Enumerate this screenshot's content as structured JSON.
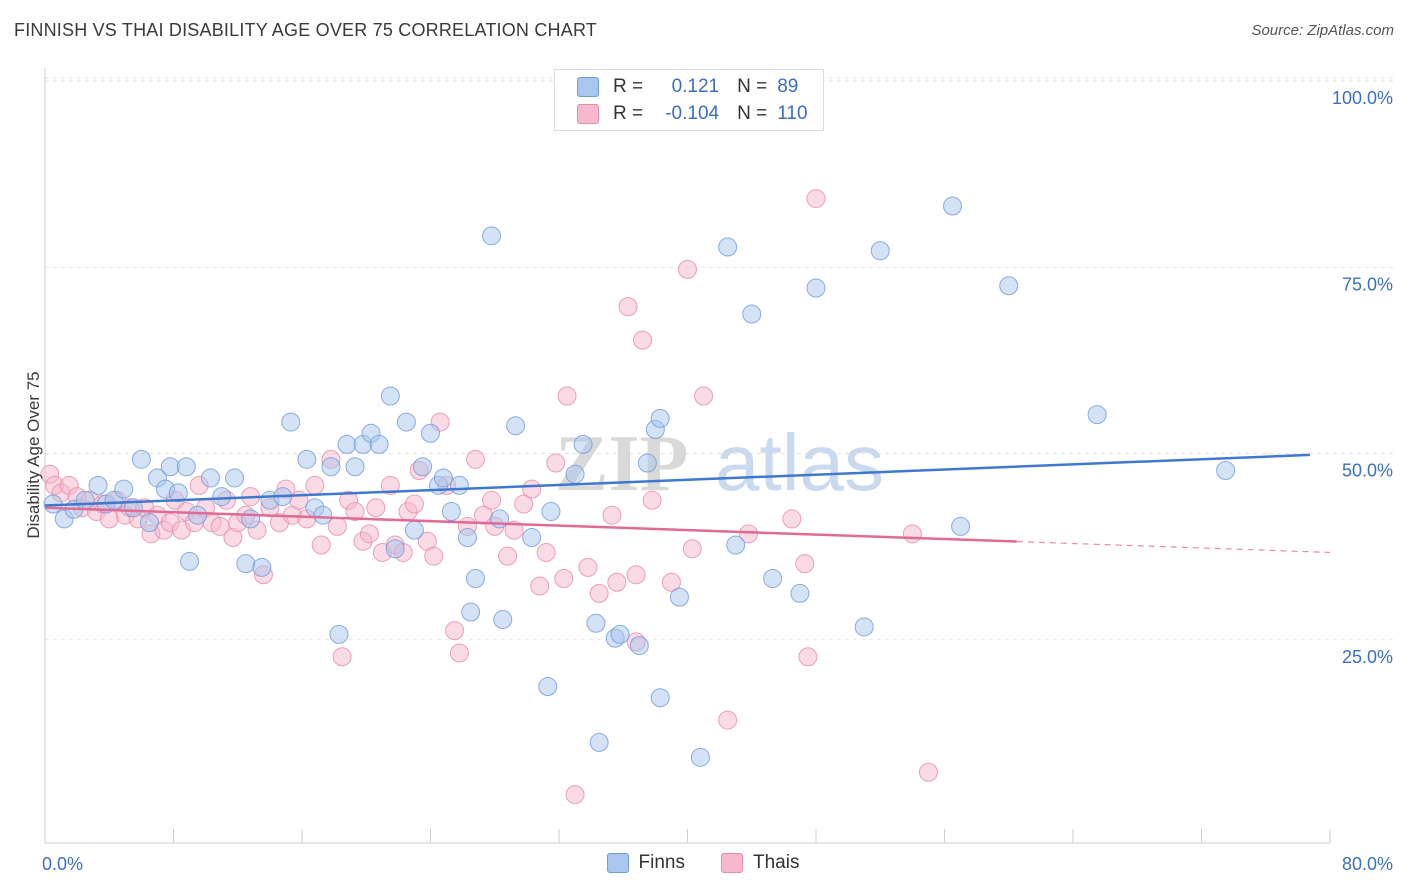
{
  "header": {
    "title": "FINNISH VS THAI DISABILITY AGE OVER 75 CORRELATION CHART",
    "source": "Source: ZipAtlas.com"
  },
  "legend": {
    "rows": [
      {
        "r_label": "R =",
        "r_value": "0.121",
        "n_label": "N =",
        "n_value": "89",
        "color": "#a9c6ee",
        "border": "#6f9bd8"
      },
      {
        "r_label": "R =",
        "r_value": "-0.104",
        "n_label": "N =",
        "n_value": "110",
        "color": "#f6b8cc",
        "border": "#e88aa9"
      }
    ]
  },
  "bottom_legend": [
    {
      "label": "Finns",
      "color": "#a9c6ee",
      "border": "#6f9bd8"
    },
    {
      "label": "Thais",
      "color": "#f6b8cc",
      "border": "#e88aa9"
    }
  ],
  "watermark": {
    "zip": "ZIP",
    "atlas": "atlas"
  },
  "chart_data": {
    "type": "scatter",
    "title": "FINNISH VS THAI DISABILITY AGE OVER 75 CORRELATION CHART",
    "xlabel": "",
    "ylabel": "Disability Age Over 75",
    "xlim": [
      0,
      80
    ],
    "ylim": [
      0,
      105
    ],
    "x_tick_labels": [
      "0.0%",
      "80.0%"
    ],
    "y_tick_labels": [
      "25.0%",
      "50.0%",
      "75.0%",
      "100.0%"
    ],
    "y_ticks": [
      25,
      50,
      75,
      100
    ],
    "grid": true,
    "legend_placement": "top-center",
    "series": [
      {
        "name": "Finns",
        "color": "#6f9bd8",
        "fill": "#a9c6ee",
        "trend": {
          "x0": 0,
          "y0": 45.3,
          "x1": 80,
          "y1": 52.2,
          "dash_from": 80
        },
        "points": [
          [
            0.5,
            45.5
          ],
          [
            1.2,
            43.5
          ],
          [
            1.8,
            44.8
          ],
          [
            2.5,
            46
          ],
          [
            3.3,
            48
          ],
          [
            3.8,
            45.5
          ],
          [
            4.3,
            46
          ],
          [
            4.9,
            47.5
          ],
          [
            5.5,
            45
          ],
          [
            6,
            51.5
          ],
          [
            6.5,
            43
          ],
          [
            7,
            49
          ],
          [
            7.5,
            47.5
          ],
          [
            7.8,
            50.5
          ],
          [
            8.3,
            47
          ],
          [
            8.8,
            50.5
          ],
          [
            9,
            37.8
          ],
          [
            9.5,
            44
          ],
          [
            10.3,
            49
          ],
          [
            11,
            46.5
          ],
          [
            11.8,
            49
          ],
          [
            12.5,
            37.5
          ],
          [
            12.8,
            43.5
          ],
          [
            13.5,
            37
          ],
          [
            14,
            46
          ],
          [
            14.8,
            46.5
          ],
          [
            15.3,
            56.5
          ],
          [
            16.3,
            51.5
          ],
          [
            16.8,
            45
          ],
          [
            17.3,
            44
          ],
          [
            17.8,
            50.5
          ],
          [
            18.3,
            28
          ],
          [
            18.8,
            53.5
          ],
          [
            19.3,
            50.5
          ],
          [
            19.8,
            53.5
          ],
          [
            20.3,
            55
          ],
          [
            20.8,
            53.5
          ],
          [
            21.5,
            60
          ],
          [
            21.8,
            39.5
          ],
          [
            22.5,
            56.5
          ],
          [
            23,
            42
          ],
          [
            23.5,
            50.5
          ],
          [
            24,
            55
          ],
          [
            24.5,
            48
          ],
          [
            24.8,
            49
          ],
          [
            25.3,
            44.5
          ],
          [
            25.8,
            48
          ],
          [
            26.3,
            41
          ],
          [
            26.8,
            35.5
          ],
          [
            26.5,
            31
          ],
          [
            27.8,
            81.5
          ],
          [
            28.3,
            43.5
          ],
          [
            28.5,
            30
          ],
          [
            29.3,
            56
          ],
          [
            30.3,
            41
          ],
          [
            31.3,
            21
          ],
          [
            31.5,
            44.5
          ],
          [
            33,
            49.5
          ],
          [
            33.5,
            53.5
          ],
          [
            34.5,
            13.5
          ],
          [
            34.3,
            29.5
          ],
          [
            35.5,
            27.5
          ],
          [
            35.8,
            28
          ],
          [
            37,
            26.5
          ],
          [
            37.5,
            51
          ],
          [
            38,
            55.5
          ],
          [
            38.3,
            57
          ],
          [
            38.3,
            19.5
          ],
          [
            39.5,
            33
          ],
          [
            40.8,
            11.5
          ],
          [
            42.5,
            80
          ],
          [
            43,
            40
          ],
          [
            44,
            71
          ],
          [
            45.3,
            35.5
          ],
          [
            47,
            33.5
          ],
          [
            48,
            74.5
          ],
          [
            51,
            29
          ],
          [
            52,
            79.5
          ],
          [
            56.5,
            85.5
          ],
          [
            57,
            42.5
          ],
          [
            60,
            74.8
          ],
          [
            65.5,
            57.5
          ],
          [
            73.5,
            50
          ]
        ]
      },
      {
        "name": "Thais",
        "color": "#e88aa9",
        "fill": "#f6b8cc",
        "trend": {
          "x0": 0,
          "y0": 45.0,
          "x1": 80,
          "y1": 39.0,
          "dash_from": 60.5
        },
        "points": [
          [
            0.3,
            49.5
          ],
          [
            0.6,
            48
          ],
          [
            1,
            47
          ],
          [
            1.5,
            48
          ],
          [
            2,
            46.5
          ],
          [
            2.3,
            45
          ],
          [
            2.8,
            46
          ],
          [
            3.2,
            44.5
          ],
          [
            3.6,
            45.5
          ],
          [
            4,
            43.5
          ],
          [
            4.5,
            46
          ],
          [
            5,
            44
          ],
          [
            5.3,
            45
          ],
          [
            5.8,
            43.5
          ],
          [
            6.2,
            45
          ],
          [
            6.6,
            41.5
          ],
          [
            7,
            44
          ],
          [
            7.4,
            42
          ],
          [
            7.8,
            43
          ],
          [
            8.1,
            46
          ],
          [
            8.5,
            42
          ],
          [
            8.8,
            44.5
          ],
          [
            9.3,
            43
          ],
          [
            9.6,
            48
          ],
          [
            10,
            45
          ],
          [
            10.4,
            43
          ],
          [
            10.9,
            42.5
          ],
          [
            11.3,
            46
          ],
          [
            11.7,
            41
          ],
          [
            12,
            43
          ],
          [
            12.5,
            44
          ],
          [
            12.8,
            46.5
          ],
          [
            13.2,
            42
          ],
          [
            13.6,
            36
          ],
          [
            14,
            45
          ],
          [
            14.6,
            43
          ],
          [
            15,
            47.5
          ],
          [
            15.4,
            44
          ],
          [
            15.8,
            46
          ],
          [
            16.3,
            43.5
          ],
          [
            16.8,
            48
          ],
          [
            17.2,
            40
          ],
          [
            17.8,
            51.5
          ],
          [
            18.2,
            42.5
          ],
          [
            18.5,
            25
          ],
          [
            18.9,
            46
          ],
          [
            19.3,
            44.5
          ],
          [
            19.8,
            40.5
          ],
          [
            20.2,
            41.5
          ],
          [
            20.6,
            45
          ],
          [
            21,
            39
          ],
          [
            21.5,
            48
          ],
          [
            21.8,
            40
          ],
          [
            22.3,
            39
          ],
          [
            22.6,
            44.5
          ],
          [
            23,
            45.5
          ],
          [
            23.3,
            50
          ],
          [
            23.8,
            40.5
          ],
          [
            24.2,
            38.5
          ],
          [
            24.6,
            56.5
          ],
          [
            25,
            48
          ],
          [
            25.5,
            28.5
          ],
          [
            25.8,
            25.5
          ],
          [
            26.3,
            42.5
          ],
          [
            26.8,
            51.5
          ],
          [
            27.3,
            44
          ],
          [
            27.8,
            46
          ],
          [
            28,
            42.5
          ],
          [
            28.8,
            38.5
          ],
          [
            29.2,
            42
          ],
          [
            29.8,
            45.5
          ],
          [
            30.3,
            47.5
          ],
          [
            30.8,
            34.5
          ],
          [
            31.2,
            39
          ],
          [
            31.8,
            51
          ],
          [
            32.3,
            35.5
          ],
          [
            32.5,
            60
          ],
          [
            33,
            6.5
          ],
          [
            33.8,
            37
          ],
          [
            34.5,
            33.5
          ],
          [
            35.3,
            44
          ],
          [
            35.6,
            35
          ],
          [
            36.3,
            72
          ],
          [
            36.8,
            27
          ],
          [
            36.8,
            36
          ],
          [
            37.2,
            67.5
          ],
          [
            37.8,
            46
          ],
          [
            39,
            35
          ],
          [
            40,
            77
          ],
          [
            40.3,
            39.5
          ],
          [
            41,
            60
          ],
          [
            42.5,
            16.5
          ],
          [
            43.8,
            41.5
          ],
          [
            46.5,
            43.5
          ],
          [
            47.3,
            37.5
          ],
          [
            47.5,
            25
          ],
          [
            48,
            86.5
          ],
          [
            54,
            41.5
          ],
          [
            55,
            9.5
          ]
        ]
      }
    ]
  }
}
